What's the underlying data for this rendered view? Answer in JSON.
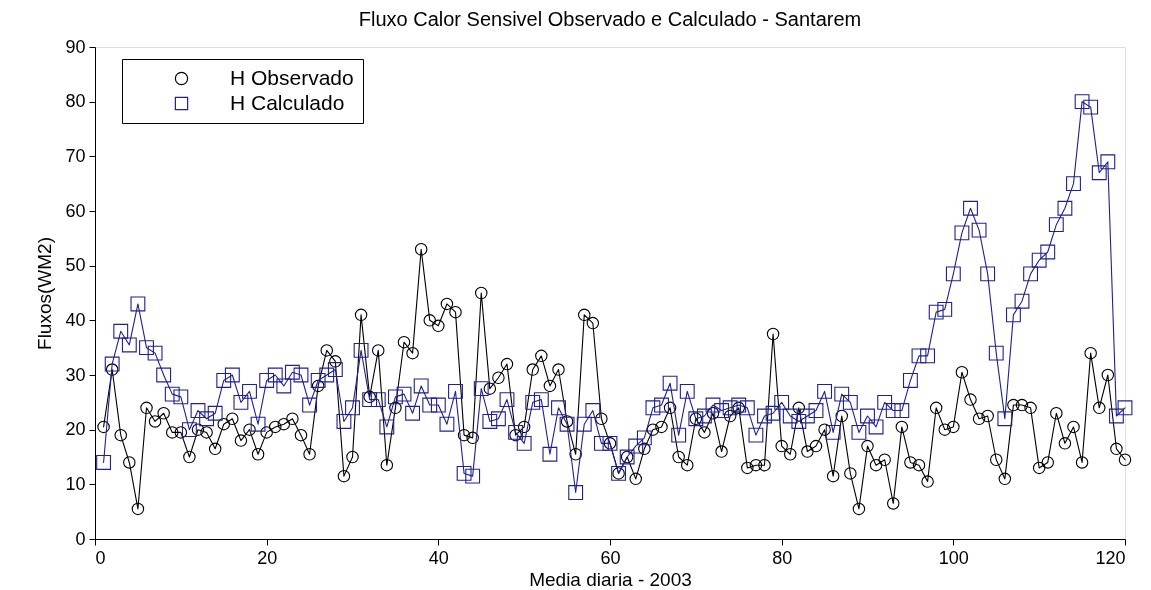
{
  "chart_data": {
    "type": "line",
    "title": "Fluxo Calor Sensivel Observado e Calculado - Santarem",
    "xlabel": "Media diaria - 2003",
    "ylabel": "Fluxos(WM2)",
    "x": [
      1,
      2,
      3,
      4,
      5,
      6,
      7,
      8,
      9,
      10,
      11,
      12,
      13,
      14,
      15,
      16,
      17,
      18,
      19,
      20,
      21,
      22,
      23,
      24,
      25,
      26,
      27,
      28,
      29,
      30,
      31,
      32,
      33,
      34,
      35,
      36,
      37,
      38,
      39,
      40,
      41,
      42,
      43,
      44,
      45,
      46,
      47,
      48,
      49,
      50,
      51,
      52,
      53,
      54,
      55,
      56,
      57,
      58,
      59,
      60,
      61,
      62,
      63,
      64,
      65,
      66,
      67,
      68,
      69,
      70,
      71,
      72,
      73,
      74,
      75,
      76,
      77,
      78,
      79,
      80,
      81,
      82,
      83,
      84,
      85,
      86,
      87,
      88,
      89,
      90,
      91,
      92,
      93,
      94,
      95,
      96,
      97,
      98,
      99,
      100,
      101,
      102,
      103,
      104,
      105,
      106,
      107,
      108,
      109,
      110,
      111,
      112,
      113,
      114,
      115,
      116,
      117,
      118,
      119,
      120
    ],
    "series": [
      {
        "name": "H Observado",
        "color": "#000000",
        "marker": "circle",
        "values": [
          20.5,
          31,
          19,
          14,
          5.5,
          24,
          21.5,
          23,
          19.5,
          19.5,
          15,
          20,
          19.5,
          16.5,
          21,
          22,
          18,
          20,
          15.5,
          19.5,
          20.5,
          21,
          22,
          19,
          15.5,
          28,
          34.5,
          32.5,
          11.5,
          15,
          41,
          26,
          34.5,
          13.5,
          24,
          36,
          34,
          53,
          40,
          39,
          43,
          41.5,
          19,
          18.5,
          45,
          27.5,
          29.5,
          32,
          19,
          20.5,
          31,
          33.5,
          28,
          31,
          21.5,
          15.5,
          41,
          39.5,
          22,
          17.5,
          12,
          15,
          11,
          16.5,
          20,
          20.5,
          24,
          15,
          13.5,
          22,
          19.5,
          23,
          16,
          22.5,
          24,
          13,
          13.5,
          13.5,
          37.5,
          17,
          15.5,
          24,
          16,
          17,
          20,
          11.5,
          22.5,
          12,
          5.5,
          17,
          13.5,
          14.5,
          6.5,
          20.5,
          14,
          13.5,
          10.5,
          24,
          20,
          20.5,
          30.5,
          25.5,
          22,
          22.5,
          14.5,
          11,
          24.5,
          24.5,
          24,
          13,
          14,
          23,
          17.5,
          20.5,
          14,
          34,
          24,
          30,
          16.5,
          14.5
        ]
      },
      {
        "name": "H Calculado",
        "color": "#202090",
        "marker": "square",
        "values": [
          14,
          32,
          38,
          35.5,
          43,
          35,
          34,
          30,
          26.5,
          26,
          20,
          23.5,
          22,
          23,
          29,
          30,
          25,
          27,
          21,
          29,
          30,
          28,
          30.5,
          30,
          24.5,
          29,
          30,
          31,
          21.5,
          24,
          34.5,
          25.5,
          25.5,
          20.5,
          26,
          26.5,
          23,
          28,
          24.5,
          24.5,
          21,
          27,
          12,
          11.5,
          27.5,
          21.5,
          22,
          25.5,
          19.5,
          17.5,
          25,
          25.5,
          15.5,
          24,
          21,
          8.5,
          21,
          23.5,
          17.5,
          17.5,
          12,
          15,
          17,
          18.5,
          24,
          24.5,
          28.5,
          19,
          27,
          22,
          22.5,
          24.5,
          23.5,
          24,
          24.5,
          24,
          19,
          22.5,
          23,
          25,
          22.5,
          21.5,
          22.5,
          23.5,
          27,
          19.5,
          26.5,
          25,
          19.5,
          22.5,
          20.5,
          25,
          23.5,
          23.5,
          29,
          33.5,
          33.5,
          41.5,
          42,
          48.5,
          56,
          60.5,
          56.5,
          48.5,
          34,
          22,
          41,
          43.5,
          48.5,
          51,
          52.5,
          57.5,
          60.5,
          65,
          80,
          79,
          67,
          69,
          22.5,
          24
        ]
      }
    ],
    "xlim": [
      0,
      120
    ],
    "xticks": [
      0,
      20,
      40,
      60,
      80,
      100,
      120
    ],
    "ylim": [
      0,
      90
    ],
    "yticks": [
      0,
      10,
      20,
      30,
      40,
      50,
      60,
      70,
      80,
      90
    ],
    "legend": "top left",
    "grid": false,
    "line_style": "solid"
  }
}
